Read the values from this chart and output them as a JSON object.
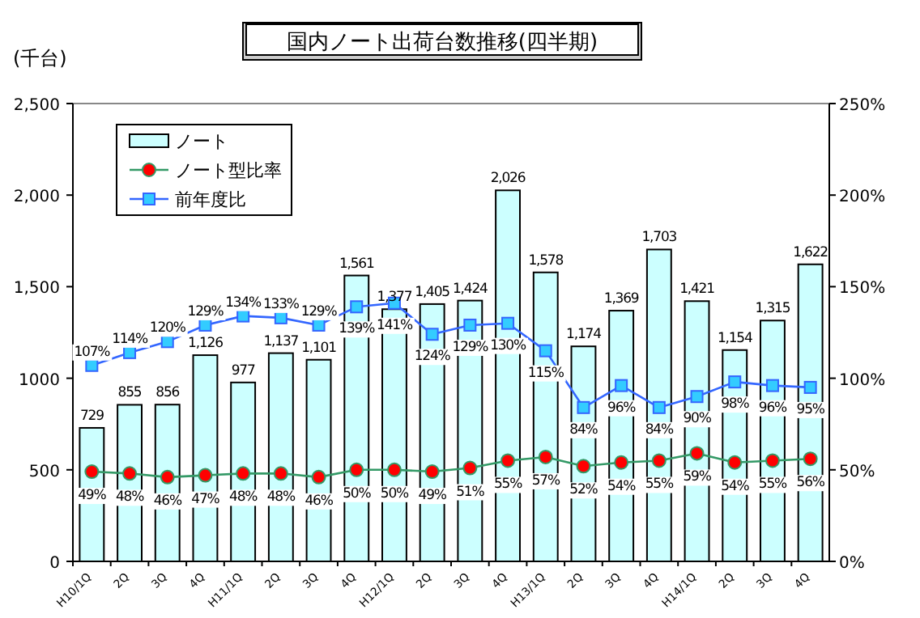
{
  "chart_data": {
    "type": "bar",
    "title": "国内ノート出荷台数推移(四半期)",
    "ylabel": "(千台)",
    "categories": [
      "H10/1Q",
      "2Q",
      "3Q",
      "4Q",
      "H11/1Q",
      "2Q",
      "3Q",
      "4Q",
      "H12/1Q",
      "2Q",
      "3Q",
      "4Q",
      "H13/1Q",
      "2Q",
      "3Q",
      "4Q",
      "H14/1Q",
      "2Q",
      "3Q",
      "4Q"
    ],
    "series": [
      {
        "name": "ノート",
        "color": "#ccffff",
        "values": [
          729,
          855,
          856,
          1126,
          977,
          1137,
          1101,
          1561,
          1377,
          1405,
          1424,
          2026,
          1578,
          1174,
          1369,
          1703,
          1421,
          1154,
          1315,
          1622
        ],
        "value_labels": [
          "729",
          "855",
          "856",
          "1,126",
          "977",
          "1,137",
          "1,101",
          "1,561",
          "1,377",
          "1,405",
          "1,424",
          "2,026",
          "1,578",
          "1,174",
          "1,369",
          "1,703",
          "1,421",
          "1,154",
          "1,315",
          "1,622"
        ]
      },
      {
        "name": "ノート型比率",
        "type": "line",
        "axis": "y2",
        "color": "#339966",
        "marker": "circle",
        "values": [
          49,
          48,
          46,
          47,
          48,
          48,
          46,
          50,
          50,
          49,
          51,
          55,
          57,
          52,
          54,
          55,
          59,
          54,
          55,
          56
        ],
        "value_labels": [
          "49%",
          "48%",
          "46%",
          "47%",
          "48%",
          "48%",
          "46%",
          "50%",
          "50%",
          "49%",
          "51%",
          "55%",
          "57%",
          "52%",
          "54%",
          "55%",
          "59%",
          "54%",
          "55%",
          "56%"
        ]
      },
      {
        "name": "前年度比",
        "type": "line",
        "axis": "y2",
        "color": "#3366ff",
        "marker": "square",
        "values": [
          107,
          114,
          120,
          129,
          134,
          133,
          129,
          139,
          141,
          124,
          129,
          130,
          115,
          84,
          96,
          84,
          90,
          98,
          96,
          95
        ],
        "value_labels": [
          "107%",
          "114%",
          "120%",
          "129%",
          "134%",
          "133%",
          "129%",
          "139%",
          "141%",
          "124%",
          "129%",
          "130%",
          "115%",
          "84%",
          "96%",
          "84%",
          "90%",
          "98%",
          "96%",
          "95%"
        ]
      }
    ],
    "ylim": [
      0,
      2500
    ],
    "yticks": [
      0,
      500,
      1000,
      {
        "value": 1500,
        "label": "1,500"
      },
      {
        "value": 2000,
        "label": "2,000"
      },
      {
        "value": 2500,
        "label": "2,500"
      }
    ],
    "y2lim": [
      0,
      250
    ],
    "y2ticks": [
      {
        "value": 0,
        "label": "0%"
      },
      {
        "value": 50,
        "label": "50%"
      },
      {
        "value": 100,
        "label": "100%"
      },
      {
        "value": 150,
        "label": "150%"
      },
      {
        "value": 200,
        "label": "200%"
      },
      {
        "value": 250,
        "label": "250%"
      }
    ],
    "grid": false,
    "legend": "top left"
  }
}
